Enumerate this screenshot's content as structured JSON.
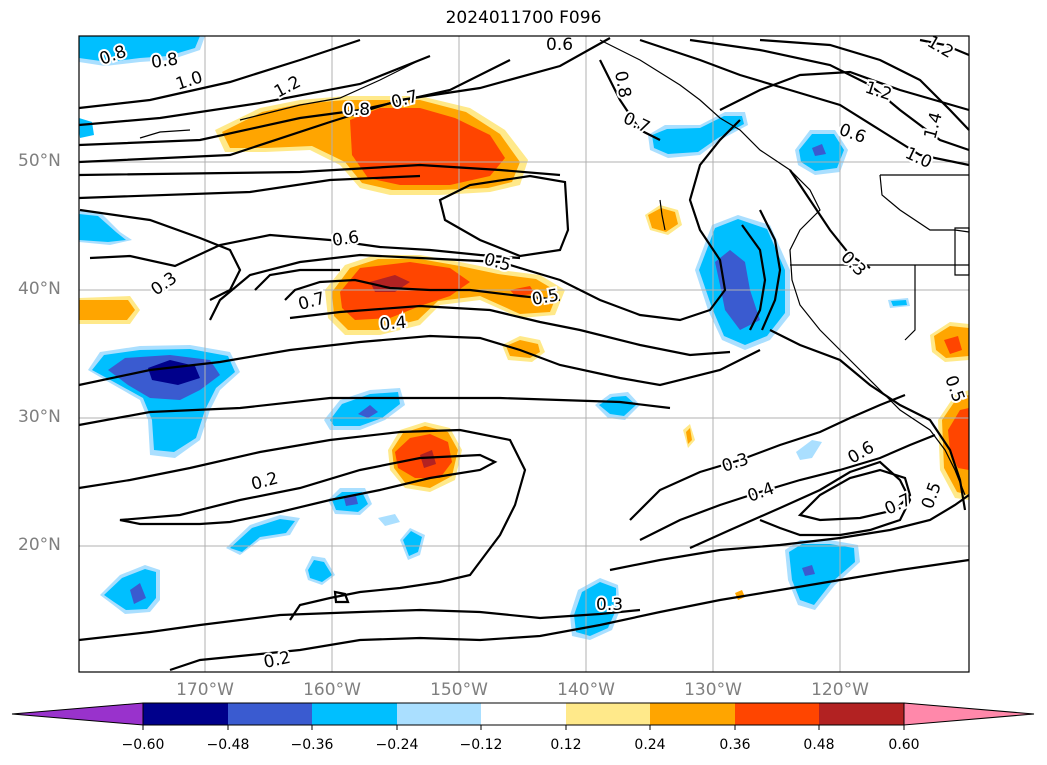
{
  "title": "2024011700 F096",
  "map": {
    "lat_labels": [
      "50°N",
      "40°N",
      "30°N",
      "20°N"
    ],
    "lon_labels": [
      "170°W",
      "160°W",
      "150°W",
      "140°W",
      "130°W",
      "120°W"
    ],
    "contour_labels": [
      "0.8",
      "0.8",
      "1.0",
      "1.2",
      "0.8",
      "0.7",
      "0.6",
      "0.8",
      "0.7",
      "1.2",
      "0.6",
      "1.0",
      "1.4",
      "1.2",
      "0.6",
      "0.5",
      "0.3",
      "0.7",
      "0.5",
      "0.4",
      "0.3",
      "0.2",
      "0.3",
      "0.4",
      "0.6",
      "0.7",
      "0.5",
      "0.2",
      "0.3",
      "0.5"
    ]
  },
  "colorbar": {
    "colors": [
      "#9932cc",
      "#00008b",
      "#3a5bd0",
      "#00bfff",
      "#aadfff",
      "#ffffff",
      "#ffe98a",
      "#ffa500",
      "#ff4500",
      "#b22222",
      "#ff88aa"
    ],
    "tick_labels": [
      "−0.60",
      "−0.48",
      "−0.36",
      "−0.24",
      "−0.12",
      "0.12",
      "0.24",
      "0.36",
      "0.48",
      "0.60"
    ]
  },
  "colors": {
    "grid": "#b0b0b0",
    "axis_label": "#7f7f7f"
  }
}
